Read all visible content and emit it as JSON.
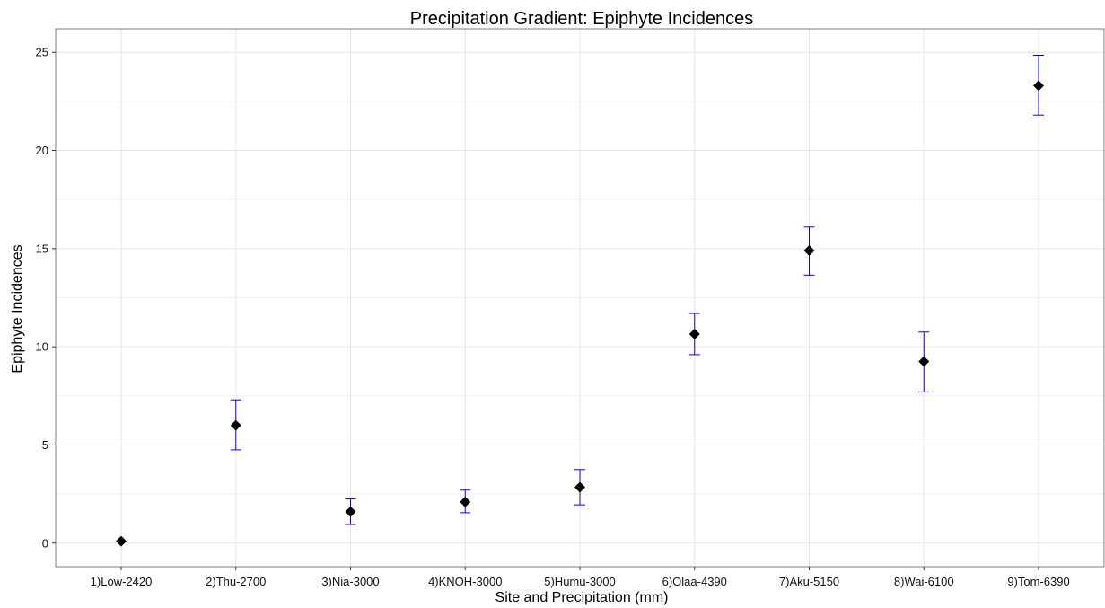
{
  "chart_data": {
    "type": "scatter",
    "title": "Precipitation Gradient: Epiphyte Incidences",
    "xlabel": "Site and Precipitation (mm)",
    "ylabel": "Epiphyte Incidences",
    "categories": [
      "1)Low-2420",
      "2)Thu-2700",
      "3)Nia-3000",
      "4)KNOH-3000",
      "5)Humu-3000",
      "6)Olaa-4390",
      "7)Aku-5150",
      "8)Wai-6100",
      "9)Tom-6390"
    ],
    "values": [
      0.1,
      6.0,
      1.6,
      2.1,
      2.85,
      10.65,
      14.9,
      9.25,
      23.3
    ],
    "error_low": [
      0.1,
      4.75,
      0.95,
      1.55,
      1.95,
      9.6,
      13.65,
      7.7,
      21.8
    ],
    "error_high": [
      0.1,
      7.3,
      2.25,
      2.7,
      3.75,
      11.7,
      16.1,
      10.75,
      24.85
    ],
    "ylim": [
      -1.2,
      26.2
    ],
    "yticks": [
      0,
      5,
      10,
      15,
      20,
      25
    ],
    "grid": true,
    "marker": "diamond",
    "colors": {
      "point": "#000000",
      "errorbar": "#0000ff",
      "grid": "#e6e6e6",
      "panel_border": "#7f7f7f"
    }
  }
}
